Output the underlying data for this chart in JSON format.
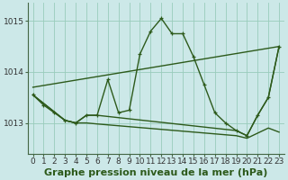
{
  "xlabel": "Graphe pression niveau de la mer (hPa)",
  "bg_color": "#cce8e8",
  "grid_color": "#99ccbb",
  "line_color": "#2d5a1b",
  "xlim": [
    -0.5,
    23.5
  ],
  "ylim": [
    1012.4,
    1015.35
  ],
  "yticks": [
    1013,
    1014,
    1015
  ],
  "xticks": [
    0,
    1,
    2,
    3,
    4,
    5,
    6,
    7,
    8,
    9,
    10,
    11,
    12,
    13,
    14,
    15,
    16,
    17,
    18,
    19,
    20,
    21,
    22,
    23
  ],
  "series": [
    {
      "x": [
        0,
        1,
        2,
        3,
        4,
        5,
        6,
        7,
        8,
        9,
        10,
        11,
        12,
        13,
        14,
        15,
        16,
        17,
        18,
        19,
        20,
        21,
        22,
        23
      ],
      "y": [
        1013.55,
        1013.35,
        1013.2,
        1013.05,
        1013.0,
        1013.15,
        1013.15,
        1013.85,
        1013.2,
        1013.25,
        1014.35,
        1014.8,
        1015.05,
        1014.75,
        1014.75,
        1014.3,
        1013.75,
        1013.2,
        1013.0,
        1012.85,
        1012.75,
        1013.15,
        1013.5,
        1014.5
      ],
      "marker": true,
      "lw": 1.0
    },
    {
      "x": [
        0,
        23
      ],
      "y": [
        1013.7,
        1014.5
      ],
      "marker": false,
      "lw": 1.0
    },
    {
      "x": [
        0,
        3,
        4,
        5,
        6,
        19,
        20,
        21,
        22,
        23
      ],
      "y": [
        1013.55,
        1013.05,
        1013.0,
        1013.15,
        1013.15,
        1012.85,
        1012.75,
        1013.15,
        1013.5,
        1014.5
      ],
      "marker": false,
      "lw": 1.0
    },
    {
      "x": [
        0,
        3,
        4,
        5,
        6,
        19,
        20,
        21,
        22,
        23
      ],
      "y": [
        1013.55,
        1013.05,
        1013.0,
        1013.0,
        1012.98,
        1012.75,
        1012.7,
        1012.8,
        1012.9,
        1012.82
      ],
      "marker": false,
      "lw": 1.0
    }
  ],
  "xlabel_fontsize": 8,
  "tick_fontsize": 6.5,
  "line_width": 1.0
}
